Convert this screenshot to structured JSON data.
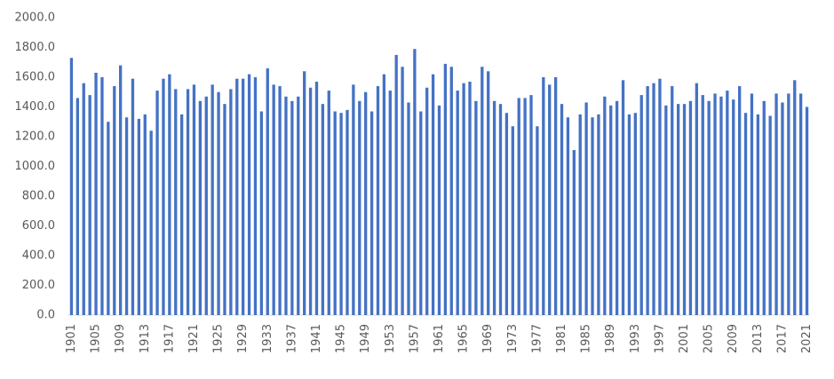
{
  "chart_data": {
    "type": "bar",
    "categories": [
      "1901",
      null,
      null,
      null,
      "1905",
      null,
      null,
      null,
      "1909",
      null,
      null,
      null,
      "1913",
      null,
      null,
      null,
      "1917",
      null,
      null,
      null,
      "1921",
      null,
      null,
      null,
      "1925",
      null,
      null,
      null,
      "1929",
      null,
      null,
      null,
      "1933",
      null,
      null,
      null,
      "1937",
      null,
      null,
      null,
      "1941",
      null,
      null,
      null,
      "1945",
      null,
      null,
      null,
      "1949",
      null,
      null,
      null,
      "1953",
      null,
      null,
      null,
      "1957",
      null,
      null,
      null,
      "1961",
      null,
      null,
      null,
      "1965",
      null,
      null,
      null,
      "1969",
      null,
      null,
      null,
      "1973",
      null,
      null,
      null,
      "1977",
      null,
      null,
      null,
      "1981",
      null,
      null,
      null,
      "1985",
      null,
      null,
      null,
      "1989",
      null,
      null,
      null,
      "1993",
      null,
      null,
      null,
      "1997",
      null,
      null,
      null,
      "2001",
      null,
      null,
      null,
      "2005",
      null,
      null,
      null,
      "2009",
      null,
      null,
      null,
      "2013",
      null,
      null,
      null,
      "2017",
      null,
      null,
      null,
      "2021"
    ],
    "values": [
      1730,
      1460,
      1560,
      1480,
      1630,
      1600,
      1300,
      1540,
      1680,
      1330,
      1590,
      1320,
      1350,
      1240,
      1510,
      1590,
      1620,
      1520,
      1350,
      1520,
      1550,
      1440,
      1470,
      1550,
      1500,
      1420,
      1520,
      1590,
      1590,
      1620,
      1600,
      1370,
      1660,
      1550,
      1540,
      1470,
      1440,
      1470,
      1640,
      1530,
      1570,
      1420,
      1510,
      1370,
      1360,
      1380,
      1550,
      1440,
      1500,
      1370,
      1540,
      1620,
      1510,
      1750,
      1670,
      1430,
      1790,
      1370,
      1530,
      1620,
      1410,
      1690,
      1670,
      1510,
      1560,
      1570,
      1440,
      1670,
      1640,
      1440,
      1420,
      1360,
      1270,
      1460,
      1460,
      1480,
      1270,
      1600,
      1550,
      1600,
      1420,
      1330,
      1110,
      1350,
      1430,
      1330,
      1350,
      1470,
      1410,
      1440,
      1580,
      1350,
      1360,
      1480,
      1540,
      1560,
      1590,
      1410,
      1540,
      1420,
      1420,
      1440,
      1560,
      1480,
      1440,
      1490,
      1470,
      1510,
      1450,
      1540,
      1360,
      1490,
      1350,
      1440,
      1340,
      1490,
      1430,
      1490,
      1580,
      1490,
      1400
    ],
    "color": "#4472c4",
    "ylim": [
      0,
      2000
    ],
    "yticks": [
      {
        "value": 0,
        "label": "0.0"
      },
      {
        "value": 200,
        "label": "200.0"
      },
      {
        "value": 400,
        "label": "400.0"
      },
      {
        "value": 600,
        "label": "600.0"
      },
      {
        "value": 800,
        "label": "800.0"
      },
      {
        "value": 1000,
        "label": "1000.0"
      },
      {
        "value": 1200,
        "label": "1200.0"
      },
      {
        "value": 1400,
        "label": "1400.0"
      },
      {
        "value": 1600,
        "label": "1600.0"
      },
      {
        "value": 1800,
        "label": "1800.0"
      },
      {
        "value": 2000,
        "label": "2000.0"
      }
    ],
    "grid": false
  }
}
